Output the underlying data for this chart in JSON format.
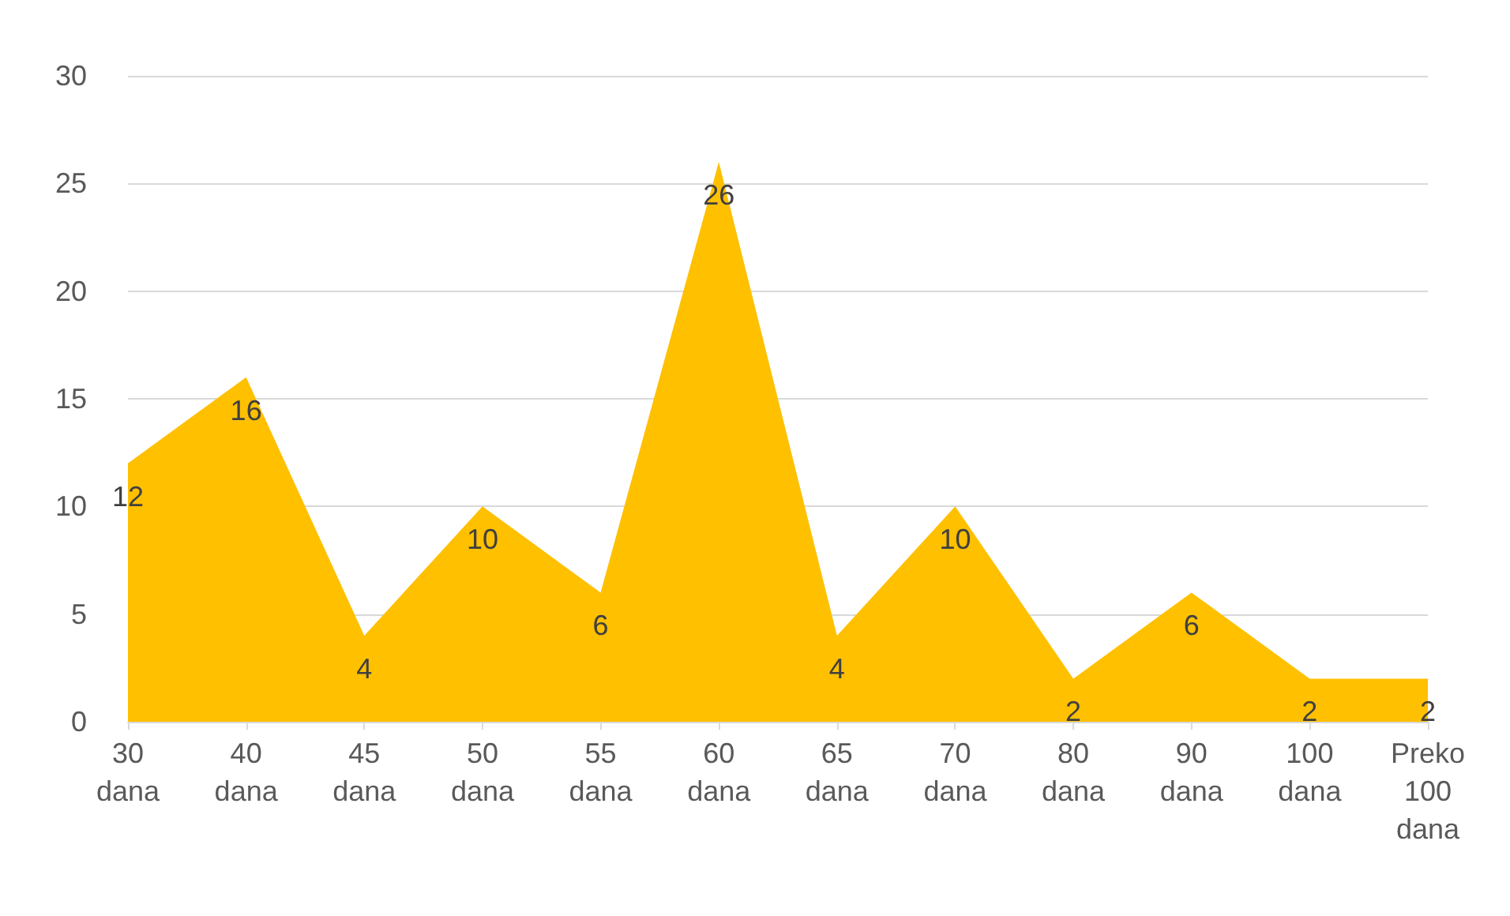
{
  "chart_data": {
    "type": "area",
    "categories": [
      "30 dana",
      "40 dana",
      "45 dana",
      "50 dana",
      "55 dana",
      "60 dana",
      "65 dana",
      "70 dana",
      "80 dana",
      "90 dana",
      "100 dana",
      "Preko 100 dana"
    ],
    "series": [
      {
        "color": "#ffc000",
        "values": [
          12,
          16,
          4,
          10,
          6,
          26,
          4,
          10,
          2,
          6,
          2,
          2
        ]
      }
    ],
    "ylim": [
      0,
      30
    ],
    "yticks": [
      0,
      5,
      10,
      15,
      20,
      25,
      30
    ],
    "grid": "y",
    "data_labels": true
  }
}
